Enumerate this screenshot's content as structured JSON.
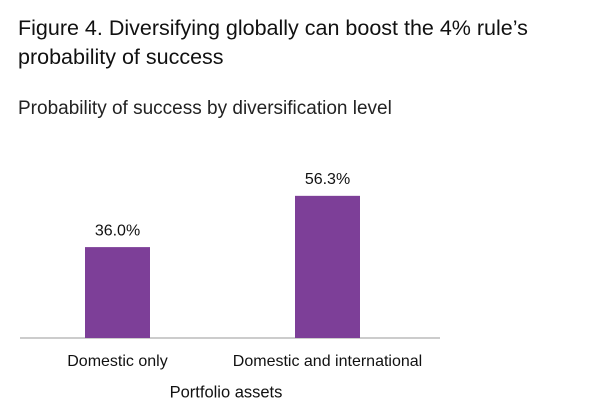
{
  "chart_data": {
    "type": "bar",
    "title": "Figure 4. Diversifying globally can boost the 4% rule’s probability of success",
    "subtitle": "Probability of success by diversification level",
    "x_label": "Portfolio assets",
    "categories": [
      "Domestic only",
      "Domestic and international"
    ],
    "values": [
      36.0,
      56.3
    ],
    "value_labels": [
      "36.0%",
      "56.3%"
    ],
    "color": "#7d3f98"
  }
}
